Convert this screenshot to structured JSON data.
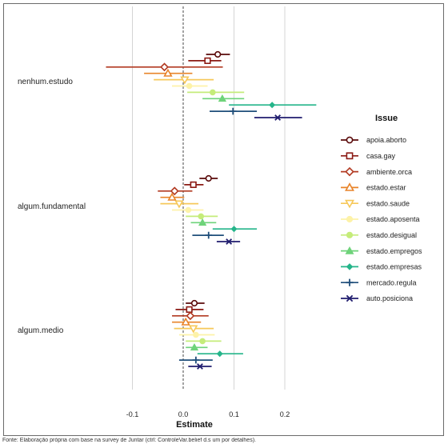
{
  "chart_data": {
    "type": "scatter",
    "subtype": "coefficient-plot",
    "xlabel": "Estimate",
    "ylabel": "",
    "xlim": [
      -0.205,
      0.3
    ],
    "xticks": [
      "-0.1",
      "0.0",
      "0.1",
      "0.2"
    ],
    "xtick_values": [
      -0.1,
      0.0,
      0.1,
      0.2
    ],
    "grid": true,
    "reference_line": 0,
    "legend_title": "Issue",
    "legend_position": "right",
    "groups": [
      "nenhum.estudo",
      "algum.fundamental",
      "algum.medio"
    ],
    "series": [
      {
        "name": "apoia.aborto",
        "color": "#5a0a0a",
        "marker": "circle",
        "estimates": [
          0.068,
          0.05,
          0.022
        ],
        "ci_low": [
          0.045,
          0.032,
          0.005
        ],
        "ci_high": [
          0.092,
          0.068,
          0.042
        ]
      },
      {
        "name": "casa.gay",
        "color": "#8b1a14",
        "marker": "square",
        "estimates": [
          0.048,
          0.02,
          0.012
        ],
        "ci_low": [
          0.01,
          0.002,
          -0.015
        ],
        "ci_high": [
          0.075,
          0.04,
          0.04
        ]
      },
      {
        "name": "ambiente.orca",
        "color": "#b23a22",
        "marker": "diamond",
        "estimates": [
          -0.037,
          -0.017,
          0.014
        ],
        "ci_low": [
          -0.152,
          -0.05,
          -0.022
        ],
        "ci_high": [
          0.078,
          0.018,
          0.05
        ]
      },
      {
        "name": "estado.estar",
        "color": "#e8842a",
        "marker": "triangle-up",
        "estimates": [
          -0.03,
          -0.022,
          0.005
        ],
        "ci_low": [
          -0.077,
          -0.045,
          -0.022
        ],
        "ci_high": [
          0.018,
          0.002,
          0.035
        ]
      },
      {
        "name": "estado.saude",
        "color": "#f6c85a",
        "marker": "triangle-down",
        "estimates": [
          0.003,
          -0.008,
          0.02
        ],
        "ci_low": [
          -0.058,
          -0.045,
          -0.018
        ],
        "ci_high": [
          0.06,
          0.03,
          0.06
        ]
      },
      {
        "name": "estado.aposenta",
        "color": "#fdf2a8",
        "marker": "circle-filled",
        "estimates": [
          0.012,
          0.01,
          0.025
        ],
        "ci_low": [
          -0.022,
          -0.022,
          -0.008
        ],
        "ci_high": [
          0.048,
          0.04,
          0.062
        ]
      },
      {
        "name": "estado.desigual",
        "color": "#c5ec7a",
        "marker": "circle-filled",
        "estimates": [
          0.058,
          0.035,
          0.038
        ],
        "ci_low": [
          0.008,
          0.005,
          0.005
        ],
        "ci_high": [
          0.12,
          0.068,
          0.075
        ]
      },
      {
        "name": "estado.empregos",
        "color": "#6ed37a",
        "marker": "triangle-up-filled",
        "estimates": [
          0.077,
          0.038,
          0.022
        ],
        "ci_low": [
          0.038,
          0.015,
          0.005
        ],
        "ci_high": [
          0.12,
          0.065,
          0.048
        ]
      },
      {
        "name": "estado.empresas",
        "color": "#25b58a",
        "marker": "diamond-filled",
        "estimates": [
          0.175,
          0.1,
          0.072
        ],
        "ci_low": [
          0.09,
          0.058,
          0.028
        ],
        "ci_high": [
          0.262,
          0.145,
          0.118
        ]
      },
      {
        "name": "mercado.regula",
        "color": "#1f4e7a",
        "marker": "cross",
        "estimates": [
          0.098,
          0.05,
          0.025
        ],
        "ci_low": [
          0.052,
          0.018,
          -0.008
        ],
        "ci_high": [
          0.145,
          0.08,
          0.058
        ]
      },
      {
        "name": "auto.posiciona",
        "color": "#1f1c6e",
        "marker": "x",
        "estimates": [
          0.186,
          0.09,
          0.033
        ],
        "ci_low": [
          0.14,
          0.066,
          0.01
        ],
        "ci_high": [
          0.234,
          0.112,
          0.056
        ]
      }
    ]
  },
  "caption": "Fonte: Elaboração própria com base na survey de Juntar (ctrl: ControleVar.belief d.s um por detalhes)."
}
